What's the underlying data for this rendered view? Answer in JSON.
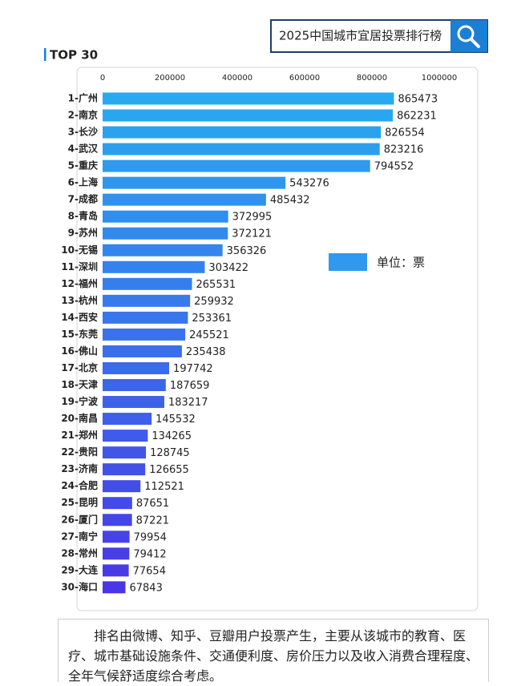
{
  "chart_data": {
    "type": "hbar",
    "title": "2025中国城市宜居投票排行榜",
    "subtitle": "TOP 30",
    "categories": [
      "1-广州",
      "2-南京",
      "3-长沙",
      "4-武汉",
      "5-重庆",
      "6-上海",
      "7-成都",
      "8-青岛",
      "9-苏州",
      "10-无锡",
      "11-深圳",
      "12-福州",
      "13-杭州",
      "14-西安",
      "15-东莞",
      "16-佛山",
      "17-北京",
      "18-天津",
      "19-宁波",
      "20-南昌",
      "21-郑州",
      "22-贵阳",
      "23-济南",
      "24-合肥",
      "25-昆明",
      "26-厦门",
      "27-南宁",
      "28-常州",
      "29-大连",
      "30-海口"
    ],
    "series": [
      {
        "name": "单位：票",
        "color": [
          "#29aaf0",
          "#4a36e6"
        ],
        "values": [
          865473,
          862231,
          826554,
          823216,
          794552,
          543276,
          485432,
          372995,
          372121,
          356326,
          303422,
          265531,
          259932,
          253361,
          245521,
          235438,
          197742,
          187659,
          183217,
          145532,
          134265,
          128745,
          126655,
          112521,
          87651,
          87221,
          79954,
          79412,
          77654,
          67843
        ]
      }
    ],
    "xlim": [
      0,
      1000000
    ],
    "xticks": [
      0,
      200000,
      400000,
      600000,
      800000,
      1000000
    ],
    "grid": false,
    "legend": "right",
    "note": "排名由微博、知乎、豆瓣用户投票产生，主要从该城市的教育、医疗、城市基础设施条件、交通便利度、房价压力以及收入消费合理程度、全年气候舒适度综合考虑。"
  }
}
